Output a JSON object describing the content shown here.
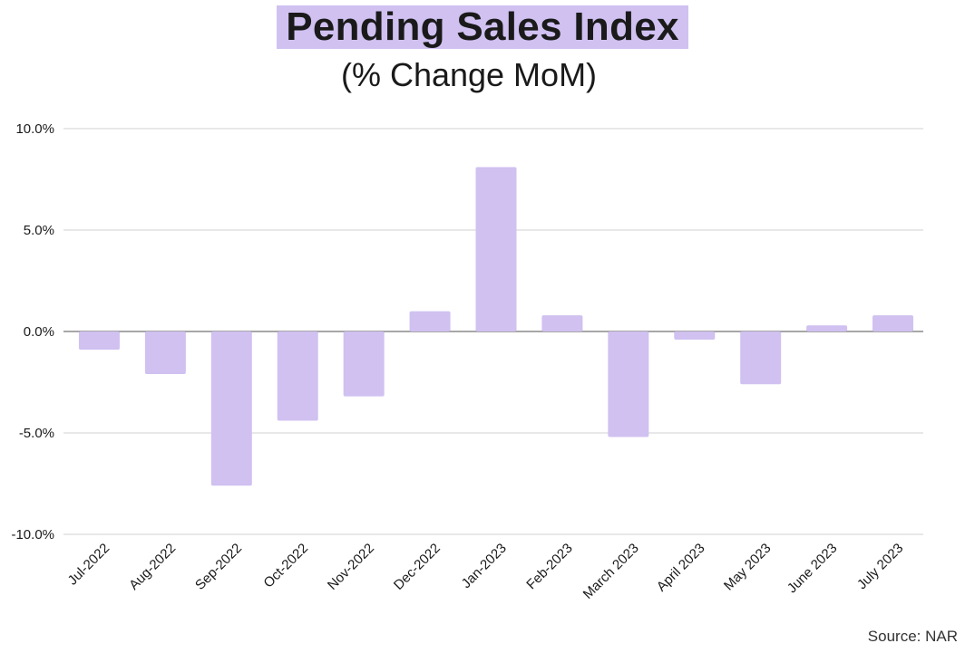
{
  "header": {
    "title": "Pending Sales Index",
    "subtitle": "(% Change MoM)"
  },
  "footer": {
    "source": "Source: NAR"
  },
  "colors": {
    "bar": "#d0c1f1",
    "title_highlight": "#d0c1f1",
    "grid": "#d9d9d9",
    "zero_line": "#8a8a8a",
    "text": "#1a1a1a"
  },
  "chart_data": {
    "type": "bar",
    "title": "Pending Sales Index",
    "subtitle": "(% Change MoM)",
    "xlabel": "",
    "ylabel": "",
    "categories": [
      "Jul-2022",
      "Aug-2022",
      "Sep-2022",
      "Oct-2022",
      "Nov-2022",
      "Dec-2022",
      "Jan-2023",
      "Feb-2023",
      "March 2023",
      "April 2023",
      "May 2023",
      "June 2023",
      "July 2023"
    ],
    "values": [
      -0.9,
      -2.1,
      -7.6,
      -4.4,
      -3.2,
      1.0,
      8.1,
      0.8,
      -5.2,
      -0.4,
      -2.6,
      0.3,
      0.8
    ],
    "ylim": [
      -10,
      10
    ],
    "yticks": [
      10,
      5,
      0,
      -5,
      -10
    ],
    "ytick_labels": [
      "10.0%",
      "5.0%",
      "0.0%",
      "-5.0%",
      "-10.0%"
    ],
    "grid": true,
    "legend": "none"
  }
}
